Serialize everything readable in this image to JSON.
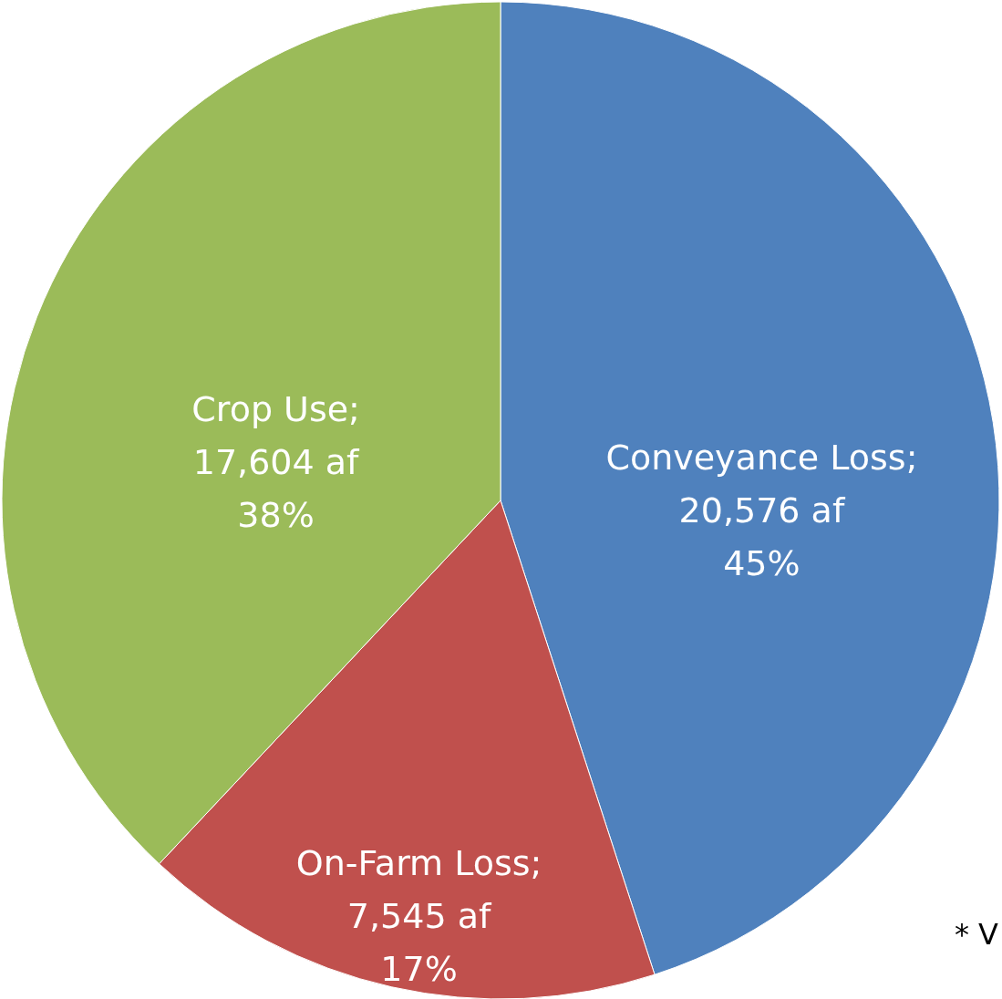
{
  "chart_data": {
    "type": "pie",
    "categories": [
      "Conveyance Loss",
      "On-Farm Loss",
      "Crop Use"
    ],
    "values": [
      45,
      17,
      38
    ],
    "colors": [
      "#4f81bd",
      "#c0504d",
      "#9bbb59"
    ],
    "value_labels": [
      [
        ";",
        "20,576 af",
        "45%"
      ],
      [
        ";",
        "7,545 af",
        "17%"
      ],
      [
        ";",
        "17,604 af",
        "38%"
      ]
    ],
    "annotations": [
      "* V"
    ],
    "legend": false
  }
}
